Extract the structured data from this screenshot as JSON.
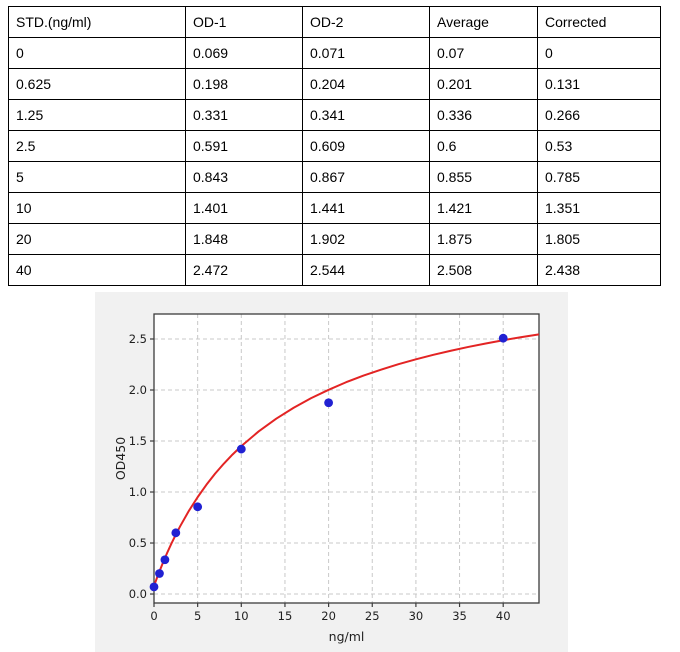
{
  "table": {
    "headers": [
      "STD.(ng/ml)",
      "OD-1",
      "OD-2",
      "Average",
      "Corrected"
    ],
    "rows": [
      [
        "0",
        "0.069",
        "0.071",
        "0.07",
        "0"
      ],
      [
        "0.625",
        "0.198",
        "0.204",
        "0.201",
        "0.131"
      ],
      [
        "1.25",
        "0.331",
        "0.341",
        "0.336",
        "0.266"
      ],
      [
        "2.5",
        "0.591",
        "0.609",
        "0.6",
        "0.53"
      ],
      [
        "5",
        "0.843",
        "0.867",
        "0.855",
        "0.785"
      ],
      [
        "10",
        "1.401",
        "1.441",
        "1.421",
        "1.351"
      ],
      [
        "20",
        "1.848",
        "1.902",
        "1.875",
        "1.805"
      ],
      [
        "40",
        "2.472",
        "2.544",
        "2.508",
        "2.438"
      ]
    ]
  },
  "chart_data": {
    "type": "scatter",
    "title": "",
    "xlabel": "ng/ml",
    "ylabel": "OD450",
    "xlim": [
      0,
      44.1
    ],
    "ylim": [
      -0.088,
      2.745
    ],
    "grid": true,
    "legend": "none",
    "xticks": {
      "values": [
        0,
        5,
        10,
        15,
        20,
        25,
        30,
        35,
        40
      ],
      "labels": [
        "0",
        "5",
        "10",
        "15",
        "20",
        "25",
        "30",
        "35",
        "40"
      ]
    },
    "yticks": {
      "values": [
        0.0,
        0.5,
        1.0,
        1.5,
        2.0,
        2.5
      ],
      "labels": [
        "0.0",
        "0.5",
        "1.0",
        "1.5",
        "2.0",
        "2.5"
      ]
    },
    "series": [
      {
        "name": "standard-points",
        "type": "scatter",
        "x": [
          0,
          0.625,
          1.25,
          2.5,
          5,
          10,
          20,
          40
        ],
        "y": [
          0.07,
          0.201,
          0.336,
          0.6,
          0.855,
          1.421,
          1.875,
          2.508
        ]
      },
      {
        "name": "fit-curve",
        "type": "line",
        "x": [
          0,
          0.5,
          1,
          1.5,
          2,
          2.5,
          3,
          4,
          5,
          6,
          7,
          8,
          9,
          10,
          12,
          14,
          16,
          18,
          20,
          22,
          24,
          26,
          28,
          30,
          32,
          34,
          36,
          38,
          40,
          42,
          44.1
        ],
        "y": [
          0.08,
          0.195,
          0.302,
          0.402,
          0.496,
          0.583,
          0.665,
          0.816,
          0.95,
          1.071,
          1.18,
          1.278,
          1.368,
          1.45,
          1.595,
          1.719,
          1.826,
          1.92,
          2.002,
          2.076,
          2.141,
          2.199,
          2.253,
          2.301,
          2.345,
          2.385,
          2.422,
          2.456,
          2.488,
          2.517,
          2.545
        ]
      }
    ],
    "colors": {
      "point": "#2121d2",
      "curve": "#e32424",
      "grid": "#c8c8c8",
      "spine": "#3c3c3c",
      "figure_bg": "#f1f1f1",
      "plot_bg": "#ffffff",
      "text": "#1f1f1f"
    }
  }
}
